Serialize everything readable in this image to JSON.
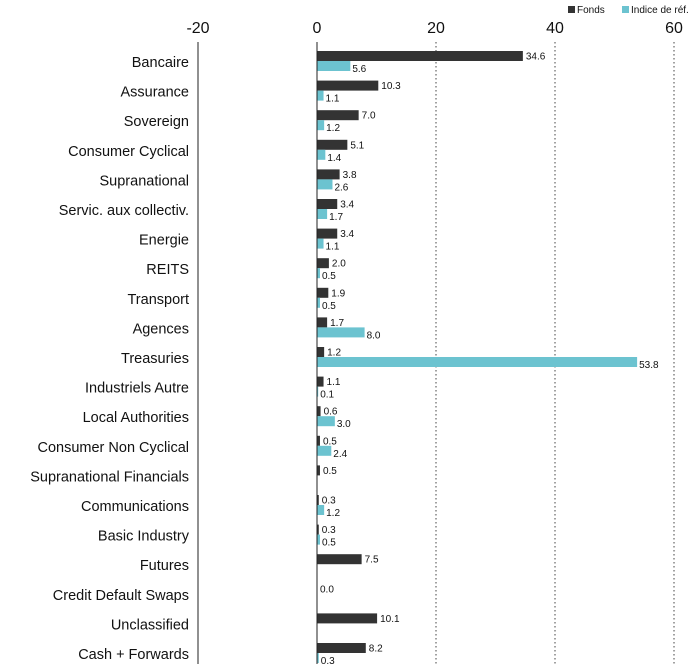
{
  "chart_data": {
    "type": "bar",
    "orientation": "horizontal",
    "title": "",
    "xlabel": "",
    "ylabel": "",
    "xlim": [
      -20,
      65
    ],
    "xticks": [
      -20,
      0,
      20,
      40,
      60
    ],
    "grid": "vertical dotted at 20, 40, 60",
    "legend": "top-right",
    "categories": [
      "Bancaire",
      "Assurance",
      "Sovereign",
      "Consumer Cyclical",
      "Supranational",
      "Servic. aux collectiv.",
      "Energie",
      "REITS",
      "Transport",
      "Agences",
      "Treasuries",
      "Industriels Autre",
      "Local Authorities",
      "Consumer Non Cyclical",
      "Supranational Financials",
      "Communications",
      "Basic Industry",
      "Futures",
      "Credit Default Swaps",
      "Unclassified",
      "Cash + Forwards"
    ],
    "series": [
      {
        "name": "Fonds",
        "color": "#333333",
        "values": [
          34.6,
          10.3,
          7.0,
          5.1,
          3.8,
          3.4,
          3.4,
          2.0,
          1.9,
          1.7,
          1.2,
          1.1,
          0.6,
          0.5,
          0.5,
          0.3,
          0.3,
          7.5,
          0.0,
          10.1,
          8.2
        ],
        "labels": [
          "34.6",
          "10.3",
          "7.0",
          "5.1",
          "3.8",
          "3.4",
          "3.4",
          "2.0",
          "1.9",
          "1.7",
          "1.2",
          "1.1",
          "0.6",
          "0.5",
          "0.5",
          "0.3",
          "0.3",
          "7.5",
          "0.0",
          "10.1",
          "8.2"
        ]
      },
      {
        "name": "Indice de réf.",
        "color": "#6cc3d0",
        "values": [
          5.6,
          1.1,
          1.2,
          1.4,
          2.6,
          1.7,
          1.1,
          0.5,
          0.5,
          8.0,
          53.8,
          0.1,
          3.0,
          2.4,
          null,
          1.2,
          0.5,
          null,
          null,
          null,
          0.3
        ],
        "labels": [
          "5.6",
          "1.1",
          "1.2",
          "1.4",
          "2.6",
          "1.7",
          "1.1",
          "0.5",
          "0.5",
          "8.0",
          "53.8",
          "0.1",
          "3.0",
          "2.4",
          null,
          "1.2",
          "0.5",
          null,
          null,
          null,
          "0.3"
        ]
      }
    ]
  },
  "colors": {
    "fonds": "#333333",
    "benchmark": "#6cc3d0",
    "axis": "#222222",
    "grid": "#444444"
  }
}
